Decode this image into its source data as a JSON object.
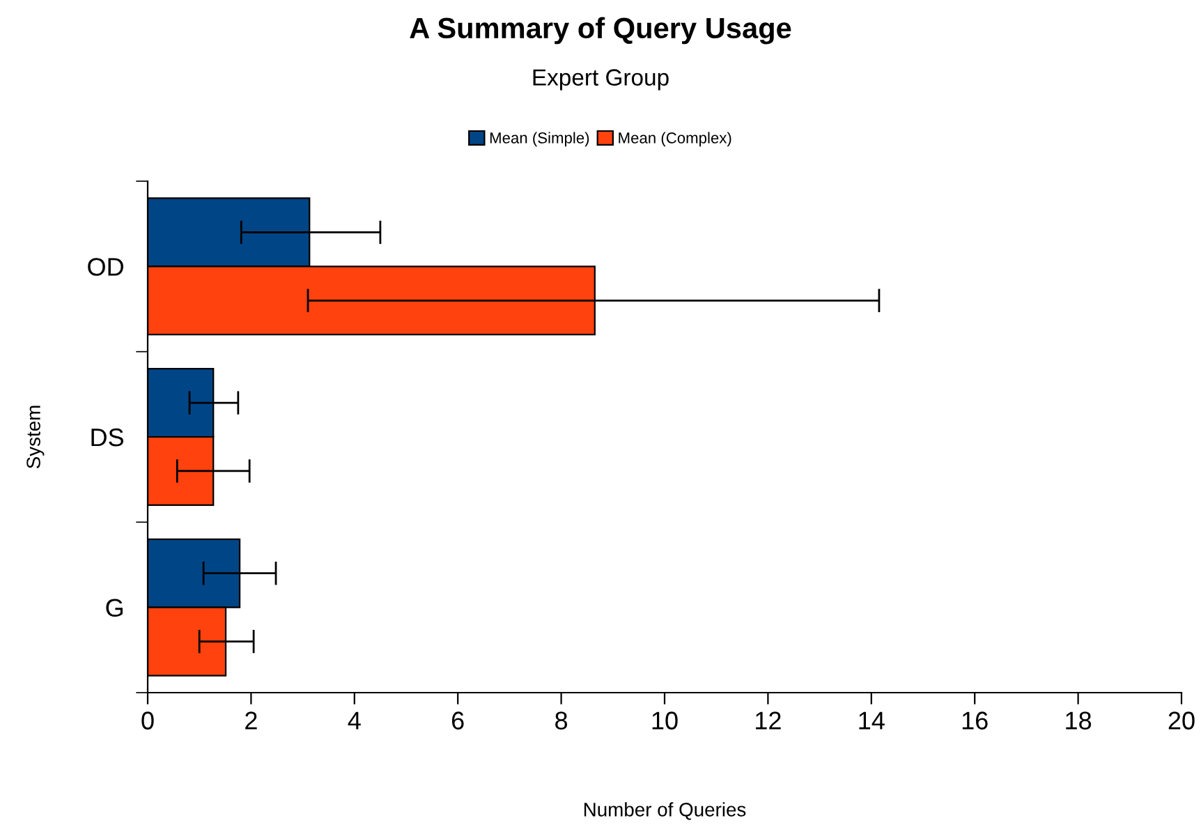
{
  "chart_data": {
    "type": "bar",
    "orientation": "horizontal",
    "title": "A Summary of Query Usage",
    "subtitle": "Expert Group",
    "xlabel": "Number of Queries",
    "ylabel": "System",
    "categories": [
      "OD",
      "DS",
      "G"
    ],
    "series": [
      {
        "name": "Mean (Simple)",
        "color": "#004586",
        "values": [
          3.13,
          1.27,
          1.78
        ],
        "errors": [
          [
            1.81,
            4.5
          ],
          [
            0.81,
            1.75
          ],
          [
            1.08,
            2.48
          ]
        ]
      },
      {
        "name": "Mean (Complex)",
        "color": "#ff420e",
        "values": [
          8.65,
          1.27,
          1.51
        ],
        "errors": [
          [
            3.1,
            14.15
          ],
          [
            0.57,
            1.97
          ],
          [
            1.0,
            2.05
          ]
        ]
      }
    ],
    "xlim": [
      0,
      20
    ],
    "xticks": [
      0,
      2,
      4,
      6,
      8,
      10,
      12,
      14,
      16,
      18,
      20
    ],
    "grid": false,
    "legend": "top"
  }
}
